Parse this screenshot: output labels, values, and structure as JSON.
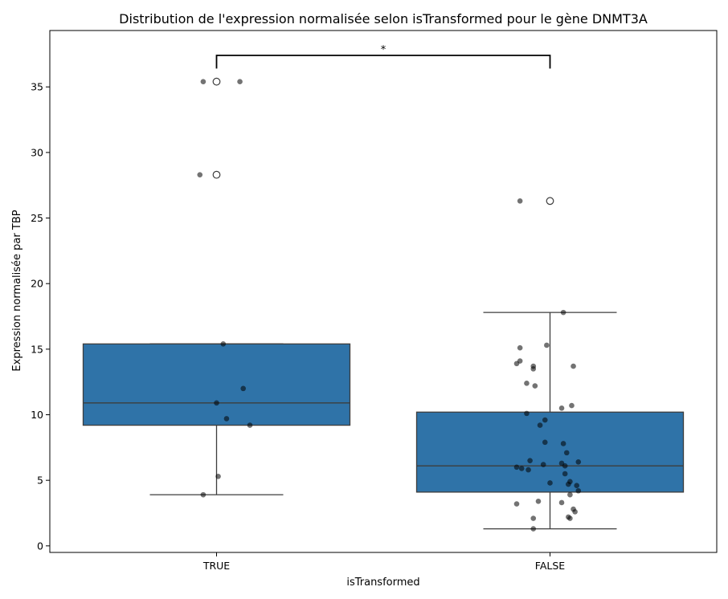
{
  "chart_data": {
    "type": "box",
    "title": "Distribution de l'expression normalisée selon isTransformed pour le gène DNMT3A",
    "xlabel": "isTransformed",
    "ylabel": "Expression normalisée par TBP",
    "ylim": [
      -0.5,
      39.3
    ],
    "yticks": [
      0,
      5,
      10,
      15,
      20,
      25,
      30,
      35
    ],
    "categories": [
      "TRUE",
      "FALSE"
    ],
    "box_color": "#2f73a8",
    "edge_color": "#3d3d3d",
    "point_color": "#000000",
    "boxes": [
      {
        "category": "TRUE",
        "q1": 9.2,
        "median": 10.9,
        "q3": 15.4,
        "whisker_low": 3.9,
        "whisker_high": 15.4,
        "fliers": [
          28.3,
          35.4
        ]
      },
      {
        "category": "FALSE",
        "q1": 4.1,
        "median": 6.1,
        "q3": 10.2,
        "whisker_low": 1.3,
        "whisker_high": 17.8,
        "fliers": [
          26.3
        ]
      }
    ],
    "points": [
      {
        "category": "TRUE",
        "jitter": [
          -0.04,
          0.07,
          -0.05,
          0.02,
          0.08,
          0.0,
          0.1,
          -0.04
        ],
        "values": [
          35.4,
          35.4,
          28.3,
          15.4,
          12.0,
          10.9,
          9.2,
          3.9
        ]
      },
      {
        "category": "TRUE",
        "jitter": [
          0.03,
          0.005
        ],
        "values": [
          9.7,
          5.3
        ]
      },
      {
        "category": "FALSE",
        "jitter": [
          -0.09,
          0.04,
          -0.01,
          -0.09,
          -0.09,
          -0.05,
          0.07,
          -0.05,
          -0.1,
          -0.045,
          0.065,
          -0.07,
          0.035,
          -0.07,
          -0.015,
          -0.03,
          0.04,
          -0.015,
          0.05,
          0.035,
          -0.1,
          -0.06,
          0.085,
          0.045,
          -0.02,
          0.045,
          -0.085,
          -0.065,
          0.06,
          0.08,
          0.0,
          0.085,
          0.055,
          0.06,
          -0.1,
          0.07,
          0.035,
          -0.035,
          0.075,
          0.055,
          0.06,
          -0.05,
          -0.05
        ],
        "values": [
          26.3,
          17.8,
          15.3,
          15.1,
          14.1,
          13.7,
          13.7,
          13.5,
          13.9,
          12.2,
          10.7,
          12.4,
          10.5,
          10.1,
          9.6,
          9.2,
          7.8,
          7.9,
          7.1,
          6.3,
          6.0,
          6.5,
          6.4,
          6.1,
          6.2,
          5.5,
          5.9,
          5.8,
          4.9,
          4.6,
          4.8,
          4.2,
          4.7,
          3.9,
          3.2,
          2.8,
          3.3,
          3.4,
          2.6,
          2.2,
          2.1,
          2.1,
          1.3
        ]
      }
    ],
    "annotation": {
      "label": "*",
      "between": [
        "TRUE",
        "FALSE"
      ],
      "y": 37.4
    }
  }
}
